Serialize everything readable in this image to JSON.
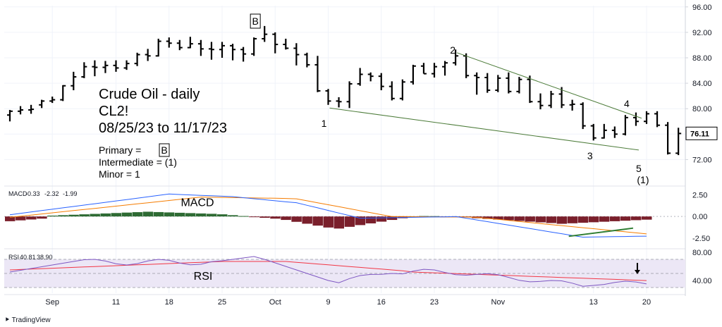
{
  "chart_data": {
    "type": "ohlc",
    "instrument": "CL2!",
    "title_lines": [
      "Crude Oil - daily",
      "CL2!",
      "08/25/23 to 11/17/23"
    ],
    "wave_notes": [
      "Primary = ",
      "Intermediate = (1)",
      "Minor = 1"
    ],
    "primary_box": "B",
    "price_axis": {
      "ticks": [
        96.0,
        92.0,
        88.0,
        84.0,
        80.0,
        76.0,
        72.0
      ],
      "range": [
        68.5,
        96.2
      ]
    },
    "last_price": "76.11",
    "x_ticks": [
      {
        "label": "Sep",
        "i": 4
      },
      {
        "label": "11",
        "i": 10
      },
      {
        "label": "18",
        "i": 15
      },
      {
        "label": "25",
        "i": 20
      },
      {
        "label": "Oct",
        "i": 25
      },
      {
        "label": "9",
        "i": 30
      },
      {
        "label": "16",
        "i": 35
      },
      {
        "label": "23",
        "i": 40
      },
      {
        "label": "Nov",
        "i": 46
      },
      {
        "label": "13",
        "i": 55
      },
      {
        "label": "20",
        "i": 60
      }
    ],
    "bars": [
      [
        79.0,
        79.8,
        78.0,
        79.6
      ],
      [
        79.6,
        80.4,
        79.1,
        79.8
      ],
      [
        79.8,
        80.6,
        79.2,
        79.9
      ],
      [
        80.6,
        81.4,
        80.1,
        81.2
      ],
      [
        81.2,
        81.9,
        80.9,
        81.4
      ],
      [
        81.4,
        83.7,
        81.2,
        83.6
      ],
      [
        83.6,
        85.8,
        82.9,
        85.0
      ],
      [
        85.0,
        87.3,
        84.8,
        86.6
      ],
      [
        86.6,
        87.6,
        85.1,
        86.5
      ],
      [
        86.5,
        87.5,
        85.6,
        86.8
      ],
      [
        86.8,
        87.6,
        85.8,
        86.4
      ],
      [
        86.4,
        87.6,
        86.1,
        87.1
      ],
      [
        87.1,
        88.8,
        86.7,
        88.5
      ],
      [
        88.5,
        89.4,
        87.5,
        88.3
      ],
      [
        88.3,
        91.0,
        88.2,
        90.6
      ],
      [
        90.6,
        91.2,
        89.6,
        90.3
      ],
      [
        90.3,
        90.8,
        89.2,
        89.6
      ],
      [
        89.6,
        91.3,
        89.5,
        90.2
      ],
      [
        90.2,
        90.8,
        88.3,
        89.4
      ],
      [
        89.4,
        90.5,
        87.7,
        89.3
      ],
      [
        89.3,
        90.5,
        88.0,
        89.9
      ],
      [
        89.9,
        90.2,
        87.6,
        89.3
      ],
      [
        89.3,
        89.7,
        87.4,
        88.6
      ],
      [
        88.6,
        91.2,
        88.3,
        91.0
      ],
      [
        91.0,
        93.0,
        90.5,
        91.7
      ],
      [
        91.7,
        92.0,
        88.7,
        90.1
      ],
      [
        90.1,
        91.0,
        89.3,
        89.5
      ],
      [
        89.5,
        90.3,
        86.8,
        88.5
      ],
      [
        88.5,
        88.8,
        86.5,
        86.9
      ],
      [
        86.9,
        88.3,
        82.6,
        82.8
      ],
      [
        82.8,
        83.1,
        80.6,
        81.2
      ],
      [
        81.2,
        81.8,
        80.2,
        81.1
      ],
      [
        81.1,
        84.3,
        80.1,
        83.9
      ],
      [
        83.9,
        86.4,
        83.6,
        85.4
      ],
      [
        85.4,
        85.7,
        84.3,
        85.1
      ],
      [
        85.1,
        85.6,
        82.9,
        83.5
      ],
      [
        83.5,
        84.3,
        81.3,
        81.6
      ],
      [
        81.6,
        84.6,
        81.3,
        84.2
      ],
      [
        84.2,
        86.9,
        83.8,
        86.7
      ],
      [
        86.7,
        87.2,
        85.5,
        85.5
      ],
      [
        85.5,
        87.2,
        84.9,
        86.6
      ],
      [
        86.6,
        87.5,
        85.2,
        87.2
      ],
      [
        87.2,
        89.3,
        86.8,
        88.3
      ],
      [
        88.3,
        88.7,
        84.8,
        85.2
      ],
      [
        85.2,
        85.7,
        82.2,
        84.9
      ]
    ],
    "macd": {
      "label": "MACD",
      "values": [
        "-0.33",
        "-2.32",
        "-1.99"
      ],
      "ticks": [
        2.5,
        0.0,
        -2.5
      ],
      "range": [
        -3.5,
        3.2
      ]
    },
    "rsi": {
      "label": "RSI",
      "values": [
        "40.81",
        "38.90"
      ],
      "ticks": [
        80.0,
        40.0
      ],
      "range": [
        22,
        82
      ]
    },
    "wave_labels": [
      "B",
      "1",
      "2",
      "3",
      "4",
      "5",
      "(1)"
    ],
    "branding": "TradingView"
  }
}
